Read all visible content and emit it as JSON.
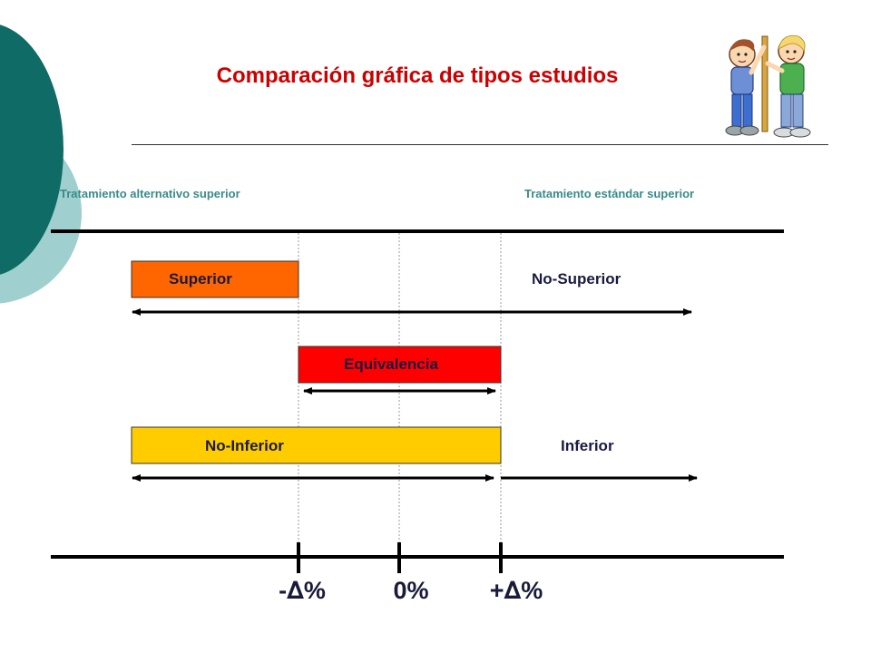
{
  "title": "Comparación gráfica de tipos estudios",
  "top_labels": {
    "left": "Tratamiento alternativo superior",
    "right": "Tratamiento estándar superior"
  },
  "regions": {
    "superior": {
      "label": "Superior",
      "color": "#ff6600"
    },
    "no_superior": {
      "label": "No-Superior"
    },
    "equivalencia": {
      "label": "Equivalencia",
      "color": "#ff0000"
    },
    "no_inferior": {
      "label": "No-Inferior",
      "color": "#ffcc00"
    },
    "inferior": {
      "label": "Inferior"
    }
  },
  "axis": {
    "ticks": [
      {
        "label_prefix": "-",
        "symbol": "∆",
        "suffix": "%"
      },
      {
        "label_prefix": "",
        "symbol": "",
        "suffix": "0%"
      },
      {
        "label_prefix": "+",
        "symbol": "∆",
        "suffix": "%"
      }
    ]
  },
  "colors": {
    "title": "#cc0000",
    "teal_dark": "#0e6b66",
    "teal_light": "#9fcfcf",
    "top_label": "#3a8a8a"
  },
  "illustration": "two-children-measuring-height-icon"
}
